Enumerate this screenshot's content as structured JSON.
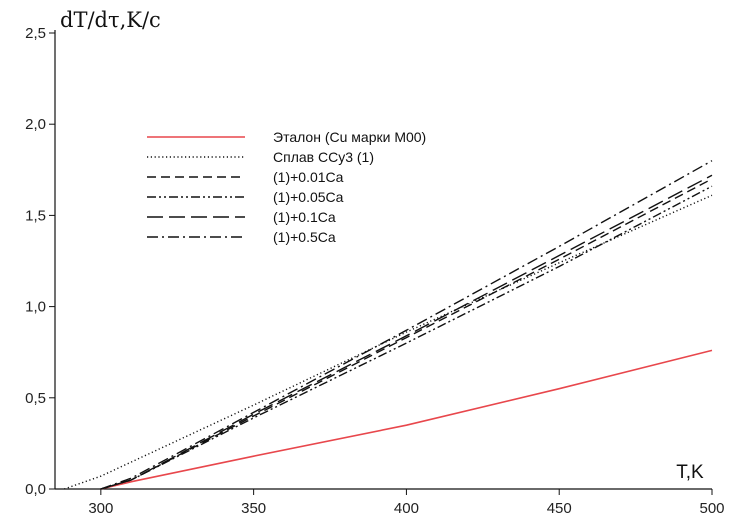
{
  "chart_data": {
    "type": "line",
    "title": "",
    "ylabel": "dT/dτ,K/c",
    "xlabel": "T,K",
    "xlim": [
      285,
      500
    ],
    "ylim": [
      0,
      2.5
    ],
    "x_ticks": [
      300,
      350,
      400,
      450,
      500
    ],
    "x_tick_labels": [
      "300",
      "350",
      "400",
      "450",
      "500"
    ],
    "y_ticks": [
      0,
      0.5,
      1.0,
      1.5,
      2.0,
      2.5
    ],
    "y_tick_labels": [
      "0,0",
      "0,5",
      "1,0",
      "1,5",
      "2,0",
      "2,5"
    ],
    "grid": false,
    "legend_position": "top-left",
    "series": [
      {
        "name": "Эталон (Cu марки М00)",
        "color": "#e8474c",
        "dash": "solid",
        "x": [
          300,
          310,
          350,
          400,
          450,
          500
        ],
        "y": [
          0.0,
          0.04,
          0.18,
          0.35,
          0.55,
          0.76
        ]
      },
      {
        "name": "Сплав ССу3 (1)",
        "color": "#111111",
        "dash": "dotted",
        "x": [
          288,
          300,
          350,
          400,
          450,
          500
        ],
        "y": [
          0.0,
          0.07,
          0.46,
          0.86,
          1.24,
          1.61
        ]
      },
      {
        "name": "(1)+0.01Ca",
        "color": "#111111",
        "dash": "dashed",
        "x": [
          300,
          310,
          350,
          400,
          450,
          500
        ],
        "y": [
          0.0,
          0.05,
          0.4,
          0.83,
          1.26,
          1.7
        ]
      },
      {
        "name": "(1)+0.05Ca",
        "color": "#111111",
        "dash": "dash-dot-dot",
        "x": [
          300,
          310,
          350,
          400,
          450,
          500
        ],
        "y": [
          0.0,
          0.05,
          0.39,
          0.8,
          1.22,
          1.66
        ]
      },
      {
        "name": "(1)+0.1Ca",
        "color": "#111111",
        "dash": "long-dash",
        "x": [
          300,
          310,
          350,
          400,
          450,
          500
        ],
        "y": [
          0.0,
          0.05,
          0.41,
          0.84,
          1.28,
          1.72
        ]
      },
      {
        "name": "(1)+0.5Ca",
        "color": "#111111",
        "dash": "dash-dot",
        "x": [
          300,
          310,
          350,
          400,
          450,
          500
        ],
        "y": [
          0.0,
          0.06,
          0.42,
          0.87,
          1.33,
          1.8
        ]
      }
    ]
  }
}
